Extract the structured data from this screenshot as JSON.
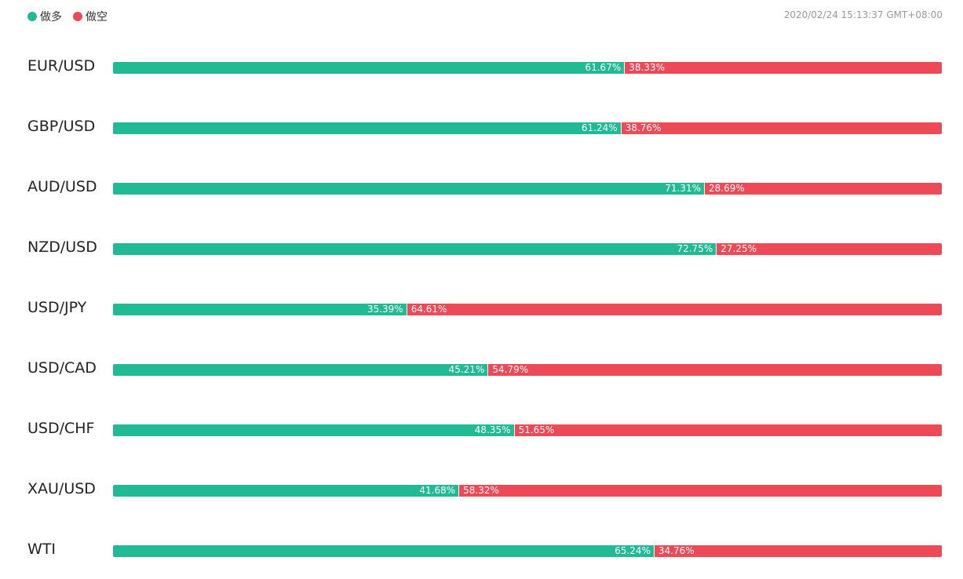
{
  "legend": {
    "long_label": "做多",
    "short_label": "做空"
  },
  "timestamp": "2020/02/24 15:13:37 GMT+08:00",
  "colors": {
    "long": "#20bb94",
    "short": "#ee4956"
  },
  "chart_data": {
    "type": "bar",
    "orientation": "horizontal-stacked-percent",
    "categories": [
      "EUR/USD",
      "GBP/USD",
      "AUD/USD",
      "NZD/USD",
      "USD/JPY",
      "USD/CAD",
      "USD/CHF",
      "XAU/USD",
      "WTI"
    ],
    "series": [
      {
        "name": "做多",
        "values": [
          61.67,
          61.24,
          71.31,
          72.75,
          35.39,
          45.21,
          48.35,
          41.68,
          65.24
        ],
        "labels": [
          "61.67%",
          "61.24%",
          "71.31%",
          "72.75%",
          "35.39%",
          "45.21%",
          "48.35%",
          "41.68%",
          "65.24%"
        ]
      },
      {
        "name": "做空",
        "values": [
          38.33,
          38.76,
          28.69,
          27.25,
          64.61,
          54.79,
          51.65,
          58.32,
          34.76
        ],
        "labels": [
          "38.33%",
          "38.76%",
          "28.69%",
          "27.25%",
          "64.61%",
          "54.79%",
          "51.65%",
          "58.32%",
          "34.76%"
        ]
      }
    ],
    "xlim": [
      0,
      100
    ],
    "grid": false,
    "legend_position": "top-left"
  }
}
